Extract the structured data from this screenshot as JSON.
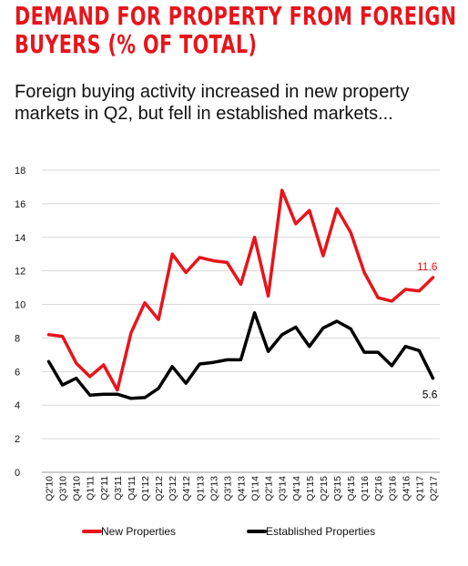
{
  "header": {
    "title_line1": "DEMAND FOR PROPERTY FROM FOREIGN",
    "title_line2": "BUYERS (% OF TOTAL)",
    "subtitle": "Foreign buying activity increased in new property markets in Q2, but fell in established markets..."
  },
  "colors": {
    "title": "#e8141b",
    "new_properties": "#e8141b",
    "established_properties": "#000000",
    "grid": "#d9d9d9"
  },
  "chart_data": {
    "type": "line",
    "categories": [
      "Q2'10",
      "Q3'10",
      "Q4'10",
      "Q1'11",
      "Q2'11",
      "Q3'11",
      "Q4'11",
      "Q1'12",
      "Q2'12",
      "Q3'12",
      "Q4'12",
      "Q1'13",
      "Q2'13",
      "Q3'13",
      "Q4'13",
      "Q1'14",
      "Q2'14",
      "Q3'14",
      "Q4'14",
      "Q1'15",
      "Q2'15",
      "Q3'15",
      "Q4'15",
      "Q1'16",
      "Q2'16",
      "Q3'16",
      "Q4'16",
      "Q1'17",
      "Q2'17"
    ],
    "series": [
      {
        "name": "New Properties",
        "color": "#e8141b",
        "values": [
          8.2,
          8.1,
          6.5,
          5.7,
          6.4,
          4.9,
          8.3,
          10.1,
          9.1,
          13.0,
          11.9,
          12.8,
          12.6,
          12.5,
          11.2,
          14.0,
          10.5,
          16.8,
          14.8,
          15.6,
          12.9,
          15.7,
          14.3,
          11.9,
          10.4,
          10.2,
          10.9,
          10.8,
          11.6
        ]
      },
      {
        "name": "Established Properties",
        "color": "#000000",
        "values": [
          6.6,
          5.2,
          5.6,
          4.6,
          4.65,
          4.65,
          4.4,
          4.45,
          5.0,
          6.3,
          5.3,
          6.45,
          6.55,
          6.7,
          6.7,
          9.5,
          7.2,
          8.2,
          8.65,
          7.5,
          8.6,
          9.0,
          8.55,
          7.15,
          7.15,
          6.35,
          7.5,
          7.25,
          5.6
        ]
      }
    ],
    "end_labels": [
      "11.6",
      "5.6"
    ],
    "y_ticks": [
      "0",
      "2",
      "4",
      "6",
      "8",
      "10",
      "12",
      "14",
      "16",
      "18"
    ],
    "ylim": [
      0,
      18
    ],
    "grid": "horizontal",
    "legend_position": "bottom"
  }
}
